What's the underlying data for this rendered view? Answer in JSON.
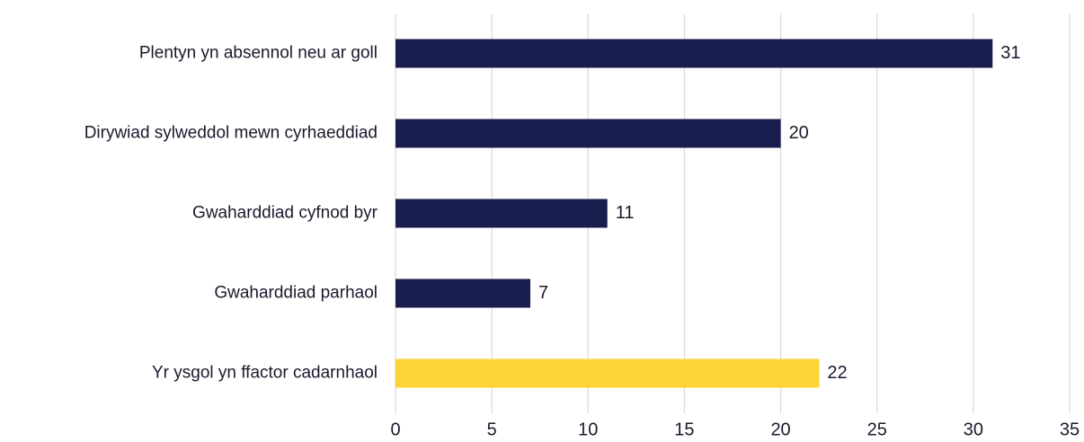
{
  "chart_data": {
    "type": "bar",
    "orientation": "horizontal",
    "categories": [
      "Plentyn yn absennol neu ar goll",
      "Dirywiad sylweddol mewn cyrhaeddiad",
      "Gwaharddiad cyfnod byr",
      "Gwaharddiad parhaol",
      "Yr ysgol yn ffactor cadarnhaol"
    ],
    "values": [
      31,
      20,
      11,
      7,
      22
    ],
    "colors": [
      "#171e4e",
      "#171e4e",
      "#171e4e",
      "#171e4e",
      "#fdd335"
    ],
    "xlim": [
      0,
      35
    ],
    "xticks": [
      0,
      5,
      10,
      15,
      20,
      25,
      30,
      35
    ],
    "grid": true
  }
}
